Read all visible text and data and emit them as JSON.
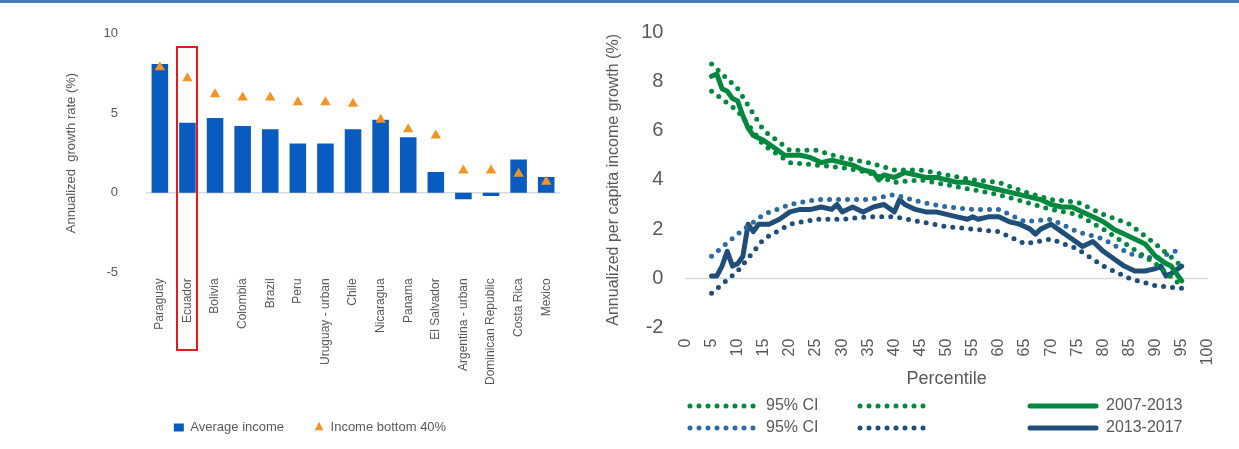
{
  "chart_data": [
    {
      "type": "bar",
      "ylabel": "Annualized  growth rate (%)",
      "categories": [
        "Paraguay",
        "Ecuador",
        "Bolivia",
        "Colombia",
        "Brazil",
        "Peru",
        "Uruguay - urban",
        "Chile",
        "Nicaragua",
        "Panama",
        "El Salvador",
        "Argentina - urban",
        "Dominican Republic",
        "Costa Rica",
        "Mexico"
      ],
      "series": [
        {
          "name": "Average income",
          "color": "#0a5bbf",
          "values": [
            8.1,
            4.4,
            4.7,
            4.2,
            4.0,
            3.1,
            3.1,
            4.0,
            4.6,
            3.5,
            1.3,
            -0.4,
            -0.2,
            2.1,
            1.0
          ]
        },
        {
          "name": "Income bottom 40%",
          "type": "scatter",
          "marker": "triangle",
          "color": "#f39325",
          "x": [
            "Paraguay",
            "Ecuador",
            "Bolivia",
            "Colombia",
            "Brazil",
            "Peru",
            "Uruguay - urban",
            "Chile",
            "Nicaragua",
            "Panama",
            "El Salvador",
            "Argentina - urban",
            "Dominican Republic",
            "Costa Rica",
            "Mexico"
          ],
          "values": [
            7.9,
            7.2,
            6.2,
            6.0,
            6.0,
            5.7,
            5.7,
            5.6,
            4.6,
            4.0,
            3.6,
            1.4,
            1.4,
            1.2,
            0.7
          ]
        }
      ],
      "ylim": [
        -5,
        10
      ],
      "yticks": [
        -5,
        0,
        5,
        10
      ],
      "grid": false,
      "legend": "bottom",
      "ref_lines": [
        {
          "axis": "y",
          "value": 0,
          "color": "#d9d9d9"
        }
      ]
    },
    {
      "type": "line",
      "xlabel": "Percentile",
      "ylabel": "Annualized per capita income growth (%)",
      "xlim": [
        0,
        100
      ],
      "xticks": [
        0,
        5,
        10,
        15,
        20,
        25,
        30,
        35,
        40,
        45,
        50,
        55,
        60,
        65,
        70,
        75,
        80,
        85,
        90,
        95,
        100
      ],
      "ylim": [
        -2,
        10
      ],
      "yticks": [
        -2,
        0,
        2,
        4,
        6,
        8,
        10
      ],
      "grid": false,
      "legend": "bottom",
      "ref_lines": [
        {
          "axis": "y",
          "value": 0,
          "color": "#d9d9d9"
        }
      ],
      "series": [
        {
          "name": "95% CI",
          "color": "#00893e",
          "line_style": "dotted",
          "x": [
            5,
            10,
            15,
            20,
            25,
            30,
            35,
            40,
            45,
            50,
            55,
            60,
            65,
            70,
            75,
            80,
            85,
            90,
            95
          ],
          "values": [
            8.7,
            7.7,
            6.0,
            5.2,
            5.2,
            4.9,
            4.7,
            4.4,
            4.4,
            4.2,
            4.0,
            3.9,
            3.5,
            3.2,
            3.1,
            2.6,
            2.2,
            1.4,
            0.5
          ]
        },
        {
          "color": "#00893e",
          "line_style": "dotted",
          "x": [
            5,
            10,
            15,
            20,
            25,
            30,
            35,
            40,
            45,
            50,
            55,
            60,
            65,
            70,
            75,
            80,
            85,
            90,
            95
          ],
          "values": [
            7.6,
            6.8,
            5.4,
            4.7,
            4.6,
            4.5,
            4.3,
            3.9,
            4.0,
            3.8,
            3.6,
            3.4,
            3.1,
            2.8,
            2.6,
            2.0,
            1.3,
            0.6,
            -0.3
          ]
        },
        {
          "name": "2007-2013",
          "color": "#00893e",
          "line_style": "solid",
          "x": [
            5,
            6,
            7,
            8,
            9,
            10,
            11,
            12,
            13,
            14,
            15,
            17,
            19,
            20,
            22,
            24,
            26,
            28,
            30,
            32,
            34,
            36,
            37,
            38,
            40,
            42,
            44,
            46,
            48,
            50,
            52,
            54,
            56,
            58,
            60,
            62,
            64,
            66,
            68,
            70,
            72,
            74,
            76,
            78,
            80,
            82,
            84,
            86,
            88,
            90,
            92,
            93,
            94,
            95
          ],
          "values": [
            8.2,
            8.3,
            7.7,
            7.6,
            7.3,
            7.2,
            6.6,
            6.1,
            5.8,
            5.7,
            5.6,
            5.3,
            5.0,
            5.0,
            5.0,
            4.9,
            4.7,
            4.8,
            4.7,
            4.6,
            4.4,
            4.3,
            4.0,
            4.2,
            4.1,
            4.3,
            4.2,
            4.1,
            4.1,
            4.0,
            3.9,
            3.9,
            3.8,
            3.7,
            3.6,
            3.5,
            3.4,
            3.3,
            3.2,
            3.0,
            2.9,
            2.9,
            2.7,
            2.5,
            2.3,
            2.0,
            1.8,
            1.6,
            1.4,
            0.9,
            0.6,
            0.5,
            0.2,
            -0.1
          ]
        },
        {
          "name": "95% CI",
          "color": "#2d6aa3",
          "line_style": "dotted",
          "x": [
            5,
            10,
            15,
            20,
            25,
            30,
            35,
            40,
            45,
            50,
            55,
            60,
            65,
            70,
            75,
            80,
            85,
            90,
            95
          ],
          "values": [
            0.9,
            1.8,
            2.6,
            3.0,
            3.2,
            3.2,
            3.2,
            3.4,
            3.1,
            2.9,
            2.8,
            2.8,
            2.3,
            2.4,
            1.9,
            1.6,
            1.0,
            0.8,
            1.2
          ]
        },
        {
          "color": "#1f4e79",
          "line_style": "dotted",
          "x": [
            5,
            10,
            15,
            20,
            25,
            30,
            35,
            40,
            45,
            50,
            55,
            60,
            65,
            70,
            75,
            80,
            85,
            90,
            95
          ],
          "values": [
            -0.6,
            0.3,
            1.6,
            2.2,
            2.4,
            2.4,
            2.5,
            2.5,
            2.3,
            2.1,
            2.0,
            1.9,
            1.4,
            1.6,
            1.2,
            0.5,
            0.0,
            -0.3,
            -0.4
          ]
        },
        {
          "name": "2013-2017",
          "color": "#1f4e79",
          "line_style": "solid",
          "x": [
            5,
            6,
            7,
            8,
            9,
            10,
            11,
            12,
            13,
            14,
            16,
            18,
            20,
            22,
            24,
            26,
            28,
            29,
            30,
            32,
            34,
            36,
            38,
            40,
            41,
            42,
            44,
            46,
            48,
            50,
            52,
            54,
            55,
            56,
            58,
            60,
            62,
            64,
            66,
            67,
            68,
            70,
            72,
            74,
            76,
            78,
            80,
            82,
            84,
            86,
            88,
            90,
            91,
            92,
            93,
            95
          ],
          "values": [
            0.1,
            0.1,
            0.5,
            1.1,
            0.5,
            0.6,
            0.9,
            2.2,
            1.9,
            2.2,
            2.2,
            2.4,
            2.7,
            2.8,
            2.8,
            2.9,
            2.8,
            3.0,
            2.7,
            2.9,
            2.7,
            2.9,
            3.0,
            2.7,
            3.2,
            3.0,
            2.8,
            2.7,
            2.7,
            2.6,
            2.5,
            2.4,
            2.5,
            2.4,
            2.5,
            2.5,
            2.3,
            2.2,
            2.0,
            1.8,
            2.0,
            2.2,
            1.9,
            1.6,
            1.3,
            1.5,
            1.1,
            0.8,
            0.5,
            0.3,
            0.3,
            0.4,
            0.5,
            0.1,
            0.2,
            0.5
          ]
        }
      ]
    }
  ]
}
